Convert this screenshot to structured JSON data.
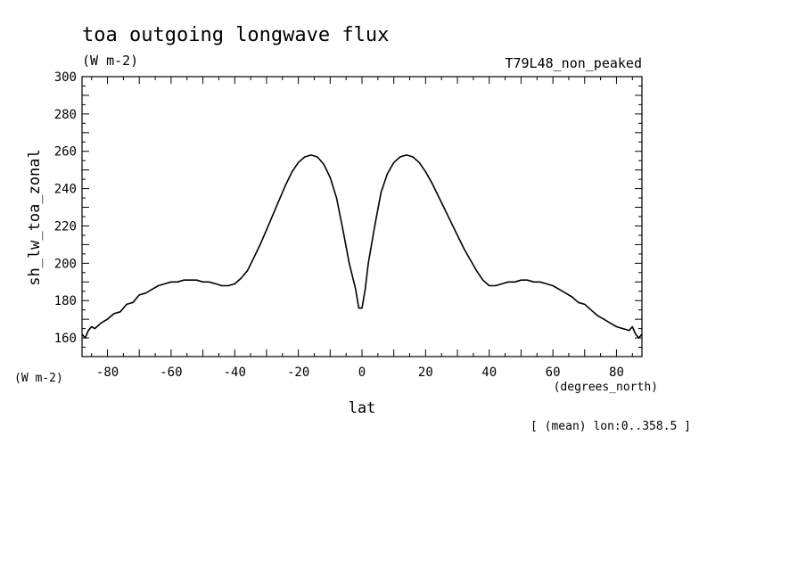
{
  "chart_data": {
    "type": "line",
    "title": "toa outgoing longwave flux",
    "title_units": "(W m-2)",
    "subtitle_right": "T79L48_non_peaked",
    "ylabel": "sh_lw_toa_zonal",
    "ylabel_units": "(W m-2)",
    "xlabel": "lat",
    "xlabel_units": "(degrees_north)",
    "footnote": "[ (mean) lon:0..358.5 ]",
    "xlim": [
      -88,
      88
    ],
    "ylim": [
      150,
      300
    ],
    "x_ticks": [
      -80,
      -60,
      -40,
      -20,
      0,
      20,
      40,
      60,
      80
    ],
    "x_tick_labels": [
      "-80",
      "-60",
      "-40",
      "-20",
      "0",
      "20",
      "40",
      "60",
      "80"
    ],
    "y_ticks": [
      160,
      180,
      200,
      220,
      240,
      260,
      280,
      300
    ],
    "y_tick_labels": [
      "160",
      "180",
      "200",
      "220",
      "240",
      "260",
      "280",
      "300"
    ],
    "grid": false,
    "series": [
      {
        "name": "",
        "color": "#000000",
        "x": [
          -88,
          -87,
          -86,
          -85,
          -84,
          -82,
          -80,
          -78,
          -76,
          -74,
          -72,
          -70,
          -68,
          -66,
          -64,
          -62,
          -60,
          -58,
          -56,
          -54,
          -52,
          -50,
          -48,
          -46,
          -44,
          -42,
          -40,
          -38,
          -36,
          -34,
          -32,
          -30,
          -28,
          -26,
          -24,
          -22,
          -20,
          -18,
          -16,
          -14,
          -12,
          -10,
          -8,
          -6,
          -4,
          -2,
          -1,
          0,
          1,
          2,
          4,
          6,
          8,
          10,
          12,
          14,
          16,
          18,
          20,
          22,
          24,
          26,
          28,
          30,
          32,
          34,
          36,
          38,
          40,
          42,
          44,
          46,
          48,
          50,
          52,
          54,
          56,
          58,
          60,
          62,
          64,
          66,
          68,
          70,
          72,
          74,
          76,
          78,
          80,
          82,
          84,
          85,
          86,
          87,
          88
        ],
        "y": [
          162,
          160,
          164,
          166,
          165,
          168,
          170,
          173,
          174,
          178,
          179,
          183,
          184,
          186,
          188,
          189,
          190,
          190,
          191,
          191,
          191,
          190,
          190,
          189,
          188,
          188,
          189,
          192,
          196,
          203,
          210,
          218,
          226,
          234,
          242,
          249,
          254,
          257,
          258,
          257,
          253,
          246,
          235,
          218,
          200,
          186,
          176,
          176,
          186,
          200,
          220,
          238,
          248,
          254,
          257,
          258,
          257,
          254,
          249,
          243,
          236,
          229,
          222,
          215,
          208,
          202,
          196,
          191,
          188,
          188,
          189,
          190,
          190,
          191,
          191,
          190,
          190,
          189,
          188,
          186,
          184,
          182,
          179,
          178,
          175,
          172,
          170,
          168,
          166,
          165,
          164,
          166,
          162,
          160,
          162
        ]
      }
    ]
  }
}
